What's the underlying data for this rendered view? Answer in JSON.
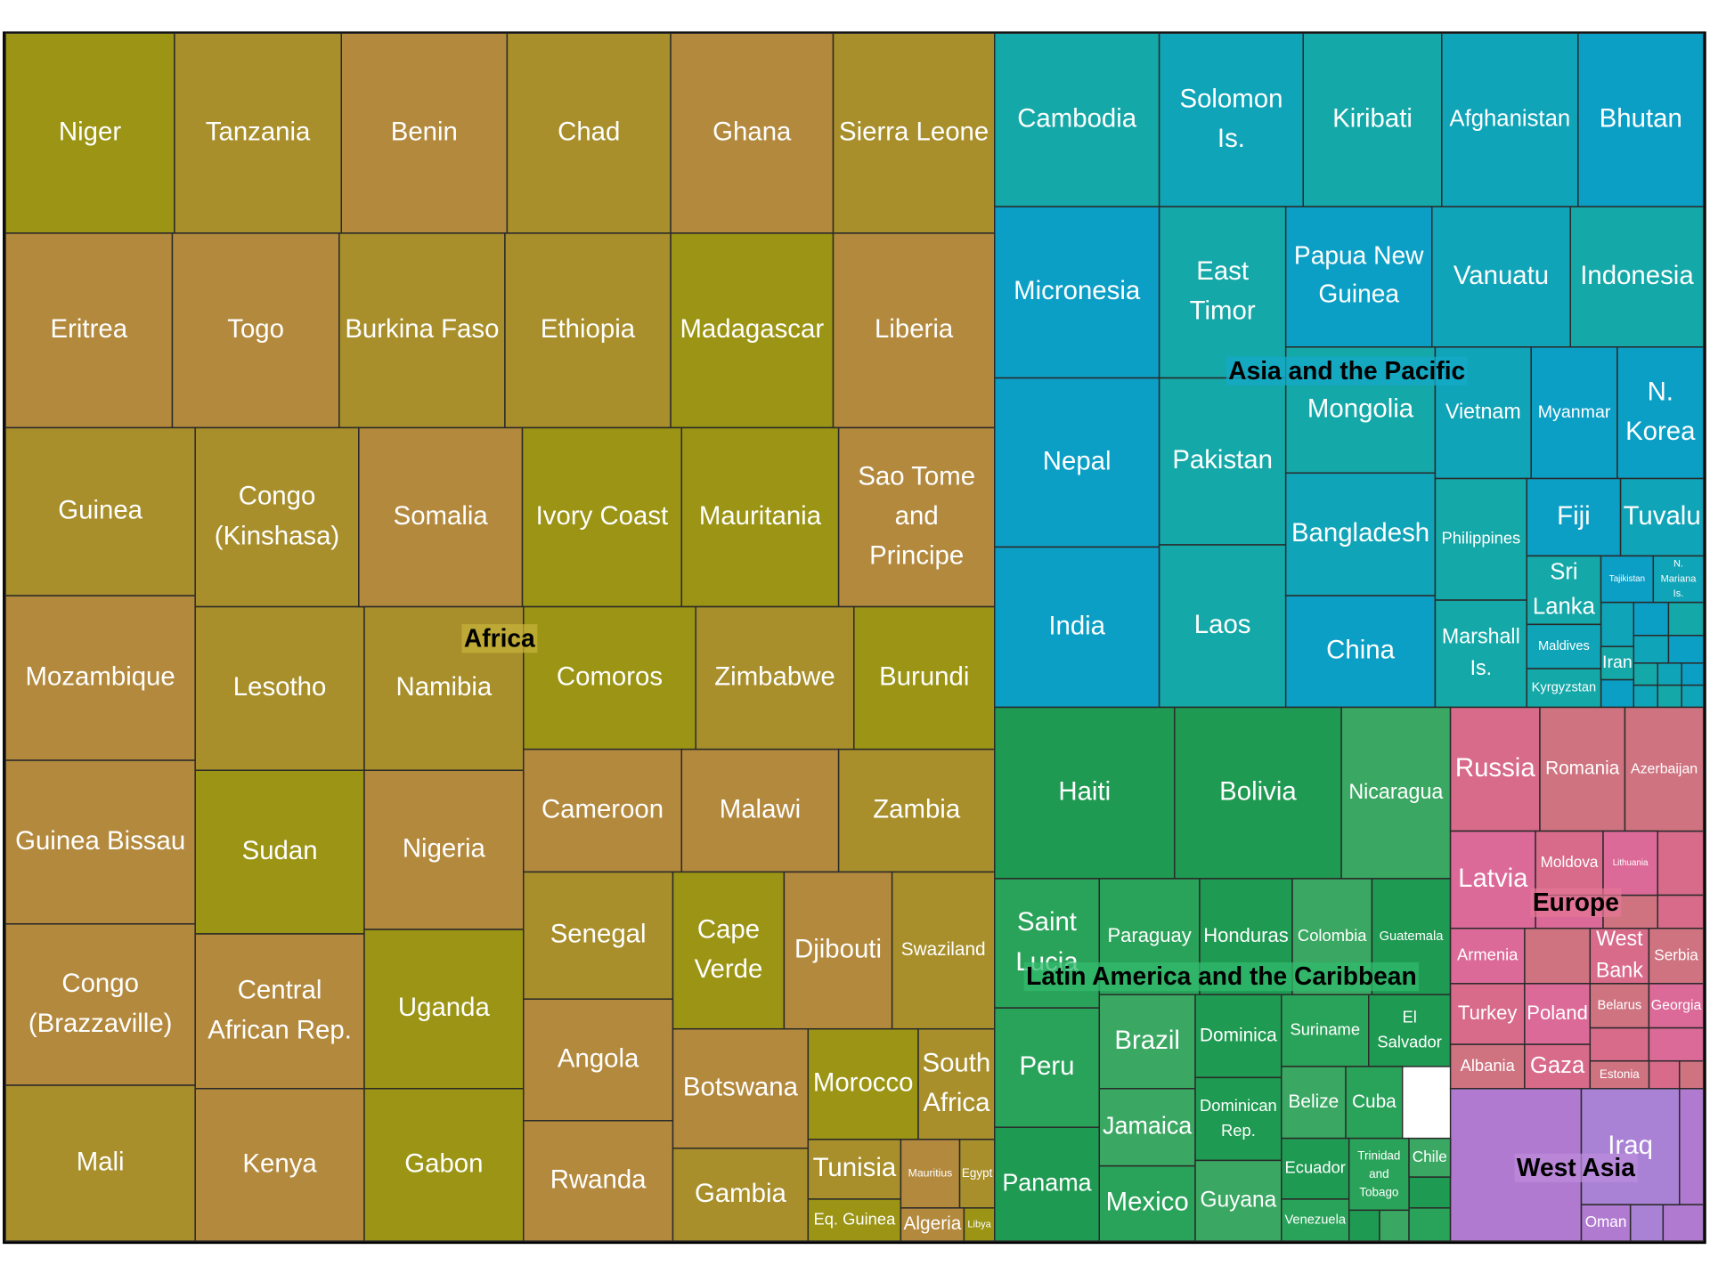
{
  "groups": [
    {
      "name": "Africa",
      "cells": [
        "Niger",
        "Tanzania",
        "Benin",
        "Chad",
        "Ghana",
        "Sierra Leone",
        "Eritrea",
        "Togo",
        "Burkina Faso",
        "Ethiopia",
        "Madagascar",
        "Liberia",
        "Guinea",
        "Mozambique",
        "Guinea Bissau",
        "Congo (Brazzaville)",
        "Mali",
        "Congo (Kinshasa)",
        "Lesotho",
        "Sudan",
        "Central African Rep.",
        "Kenya",
        "Somalia",
        "Ivory Coast",
        "Mauritania",
        "Sao Tome and Principe",
        "Namibia",
        "Nigeria",
        "Uganda",
        "Gabon",
        "Comoros",
        "Zimbabwe",
        "Burundi",
        "Cameroon",
        "Malawi",
        "Zambia",
        "Senegal",
        "Angola",
        "Rwanda",
        "Cape Verde",
        "Djibouti",
        "Swaziland",
        "Botswana",
        "Gambia",
        "Morocco",
        "South Africa",
        "Tunisia",
        "Eq. Guinea",
        "Mauritius",
        "Egypt",
        "Algeria",
        "Libya"
      ]
    },
    {
      "name": "Asia and the Pacific",
      "cells": [
        "Cambodia",
        "Solomon Is.",
        "Kiribati",
        "Afghanistan",
        "Bhutan",
        "Micronesia",
        "Nepal",
        "India",
        "East Timor",
        "Pakistan",
        "Laos",
        "Papua New Guinea",
        "Vanuatu",
        "Indonesia",
        "Mongolia",
        "Bangladesh",
        "China",
        "Vietnam",
        "Myanmar",
        "N. Korea",
        "Philippines",
        "Marshall Is.",
        "Fiji",
        "Tuvalu",
        "Sri Lanka",
        "Maldives",
        "Kyrgyzstan",
        "Tajikistan",
        "N. Mariana Is.",
        "Iran"
      ]
    },
    {
      "name": "Latin America and the Caribbean",
      "cells": [
        "Haiti",
        "Bolivia",
        "Nicaragua",
        "Saint Lucia",
        "Paraguay",
        "Honduras",
        "Colombia",
        "Guatemala",
        "Peru",
        "Panama",
        "Brazil",
        "Jamaica",
        "Mexico",
        "Dominica",
        "Dominican Rep.",
        "Guyana",
        "Suriname",
        "El Salvador",
        "Belize",
        "Cuba",
        "Ecuador",
        "Venezuela",
        "Trinidad and Tobago",
        "Chile"
      ]
    },
    {
      "name": "Europe",
      "cells": [
        "Russia",
        "Romania",
        "Azerbaijan",
        "Latvia",
        "Moldova",
        "Lithuania",
        "Armenia",
        "Turkey",
        "Albania",
        "West Bank",
        "Serbia",
        "Poland",
        "Gaza",
        "Belarus",
        "Georgia",
        "Estonia"
      ]
    },
    {
      "name": "West Asia",
      "cells": [
        "Iraq",
        "Oman"
      ]
    }
  ]
}
